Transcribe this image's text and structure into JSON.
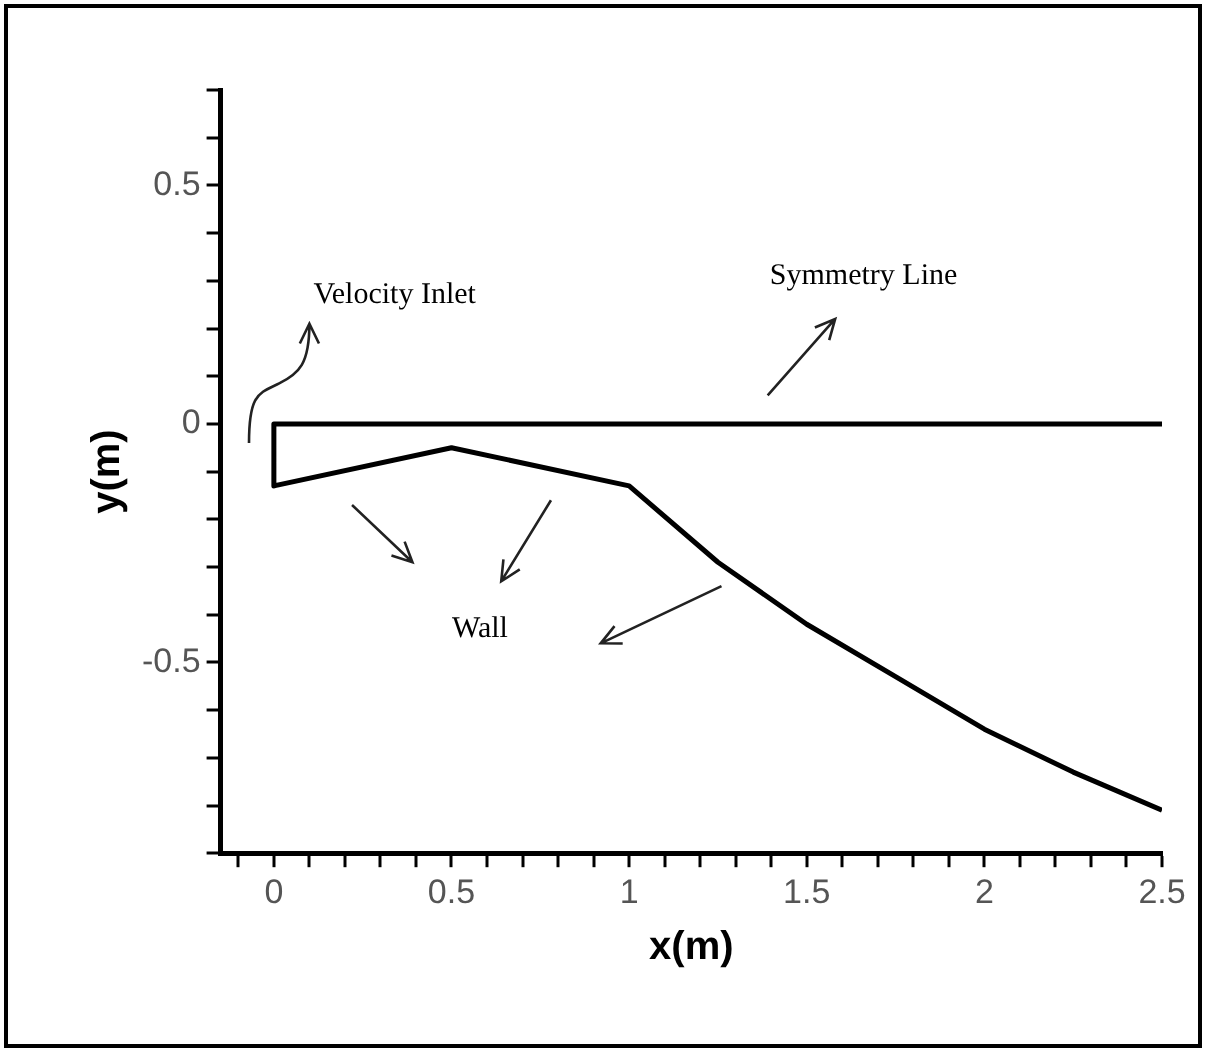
{
  "chart_data": {
    "type": "line",
    "xlabel": "x(m)",
    "ylabel": "y(m)",
    "series": [
      {
        "color": "#000000",
        "x": [
          2.5,
          0,
          0,
          0.5,
          1,
          1.25,
          1.5,
          1.75,
          2,
          2.25,
          2.5
        ],
        "values": [
          0,
          0,
          -0.13,
          -0.05,
          -0.13,
          -0.29,
          -0.42,
          -0.53,
          -0.64,
          -0.73,
          -0.81
        ]
      }
    ],
    "xlim": [
      -0.15,
      2.5
    ],
    "xticks": [
      {
        "value": -0.1,
        "label": null
      },
      0,
      {
        "value": 0.1,
        "label": null
      },
      {
        "value": 0.2,
        "label": null
      },
      {
        "value": 0.3,
        "label": null
      },
      {
        "value": 0.4,
        "label": null
      },
      0.5,
      {
        "value": 0.6,
        "label": null
      },
      {
        "value": 0.7,
        "label": null
      },
      {
        "value": 0.8,
        "label": null
      },
      {
        "value": 0.9,
        "label": null
      },
      1,
      {
        "value": 1.1,
        "label": null
      },
      {
        "value": 1.2,
        "label": null
      },
      {
        "value": 1.3,
        "label": null
      },
      {
        "value": 1.4,
        "label": null
      },
      1.5,
      {
        "value": 1.6,
        "label": null
      },
      {
        "value": 1.7,
        "label": null
      },
      {
        "value": 1.8,
        "label": null
      },
      {
        "value": 1.9,
        "label": null
      },
      2,
      {
        "value": 2.1,
        "label": null
      },
      {
        "value": 2.2,
        "label": null
      },
      {
        "value": 2.3,
        "label": null
      },
      {
        "value": 2.4,
        "label": null
      },
      2.5
    ],
    "ylim": [
      -0.9,
      0.7
    ],
    "yticks": [
      {
        "value": -0.9,
        "label": null
      },
      {
        "value": -0.8,
        "label": null
      },
      {
        "value": -0.7,
        "label": null
      },
      {
        "value": -0.6,
        "label": null
      },
      -0.5,
      {
        "value": -0.4,
        "label": null
      },
      {
        "value": -0.3,
        "label": null
      },
      {
        "value": -0.2,
        "label": null
      },
      {
        "value": -0.1,
        "label": null
      },
      0,
      {
        "value": 0.1,
        "label": null
      },
      {
        "value": 0.2,
        "label": null
      },
      {
        "value": 0.3,
        "label": null
      },
      {
        "value": 0.4,
        "label": null
      },
      0.5,
      {
        "value": 0.6,
        "label": null
      },
      {
        "value": 0.7,
        "label": null
      }
    ],
    "annotations": [
      "Velocity Inlet",
      "Symmetry Line",
      "Wall"
    ],
    "grid": false,
    "legend": false,
    "marker": "none",
    "line_style": "solid"
  }
}
